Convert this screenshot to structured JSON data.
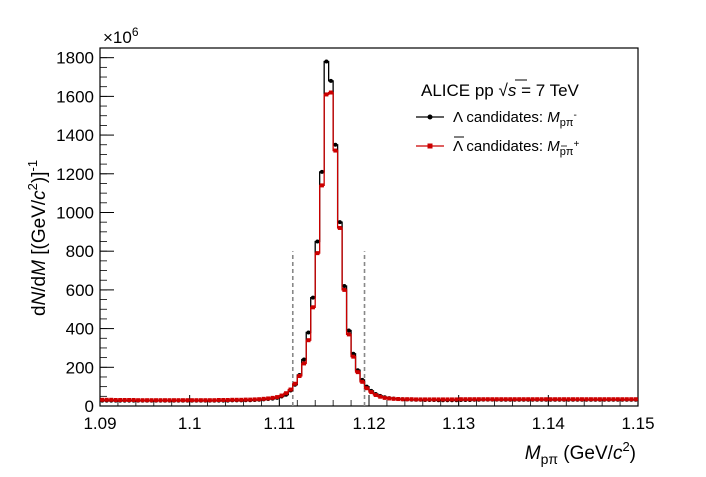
{
  "chart_data": {
    "type": "line",
    "title": "ALICE pp √s = 7 TeV",
    "title_prefix": "ALICE pp ",
    "title_sqrt": "√",
    "title_var": "s",
    "title_suffix": " = 7 TeV",
    "multiplier_label": "×10",
    "multiplier_exp": "6",
    "xlabel": "M_pπ (GeV/c²)",
    "xlabel_parts": {
      "var": "M",
      "sub": "pπ",
      "units_open": " (GeV/",
      "units_c": "c",
      "units_exp": "2",
      "units_close": ")"
    },
    "ylabel": "dN/dM [(GeV/c²)⁻¹]",
    "ylabel_parts": {
      "d1": "d",
      "N": "N",
      "slash": "/d",
      "M": "M",
      "open": " [(GeV/",
      "c": "c",
      "exp2": "2",
      "close": ")]",
      "expm1": "-1"
    },
    "xlim": [
      1.09,
      1.15
    ],
    "ylim": [
      0,
      1850
    ],
    "x_ticks": [
      1.09,
      1.1,
      1.11,
      1.12,
      1.13,
      1.14,
      1.15
    ],
    "x_tick_labels": [
      "1.09",
      "1.1",
      "1.11",
      "1.12",
      "1.13",
      "1.14",
      "1.15"
    ],
    "y_ticks": [
      0,
      200,
      400,
      600,
      800,
      1000,
      1200,
      1400,
      1600,
      1800
    ],
    "y_tick_labels": [
      "0",
      "200",
      "400",
      "600",
      "800",
      "1000",
      "1200",
      "1400",
      "1600",
      "1800"
    ],
    "bin_edges_start": 1.09,
    "bin_width": 0.0005,
    "series": [
      {
        "name": "Λ candidates: M_pπ⁻",
        "legend": {
          "main": "Λ candidates: ",
          "var": "M",
          "sub": "pπ",
          "sup": "-"
        },
        "color": "#000000",
        "values": [
          28,
          28,
          28,
          28,
          28,
          28,
          28,
          28,
          28,
          28,
          28,
          28,
          28,
          28,
          28,
          28,
          28,
          28,
          28,
          28,
          28,
          28,
          28,
          28,
          28,
          28,
          28,
          28,
          28,
          29,
          29,
          29,
          30,
          30,
          31,
          32,
          34,
          36,
          38,
          42,
          49,
          58,
          80,
          110,
          160,
          240,
          380,
          560,
          850,
          1210,
          1780,
          1680,
          1350,
          950,
          620,
          390,
          270,
          185,
          135,
          100,
          78,
          62,
          52,
          45,
          41,
          38,
          36,
          35,
          34,
          33,
          32,
          32,
          31,
          31,
          31,
          30,
          30,
          30,
          30,
          30,
          31,
          31,
          31,
          32,
          32,
          33,
          33,
          33,
          33,
          32,
          32,
          32,
          32,
          32,
          32,
          32,
          32,
          32,
          32,
          32,
          32,
          32,
          32,
          32,
          32,
          32,
          32,
          32,
          32,
          32,
          32,
          32,
          32,
          32,
          32,
          32,
          32,
          32,
          32,
          32
        ]
      },
      {
        "name": "Λ̄ candidates: M_p̄π⁺",
        "legend": {
          "main": "Λ candidates: ",
          "var": "M",
          "sub": "pπ",
          "sup": "+"
        },
        "color": "#cc0000",
        "values": [
          32,
          32,
          32,
          31,
          31,
          31,
          31,
          31,
          30,
          30,
          30,
          30,
          30,
          30,
          30,
          30,
          30,
          30,
          30,
          30,
          30,
          30,
          30,
          30,
          30,
          30,
          31,
          31,
          31,
          32,
          32,
          32,
          33,
          33,
          34,
          35,
          37,
          39,
          42,
          46,
          54,
          66,
          85,
          115,
          155,
          220,
          340,
          510,
          790,
          1140,
          1610,
          1620,
          1320,
          920,
          600,
          370,
          255,
          175,
          125,
          92,
          72,
          57,
          48,
          42,
          39,
          37,
          36,
          35,
          35,
          35,
          34,
          34,
          34,
          34,
          34,
          34,
          34,
          34,
          34,
          34,
          35,
          35,
          35,
          35,
          35,
          35,
          35,
          35,
          35,
          35,
          35,
          35,
          35,
          35,
          35,
          35,
          35,
          35,
          35,
          35,
          35,
          35,
          35,
          35,
          35,
          35,
          35,
          35,
          35,
          35,
          35,
          35,
          35,
          35,
          35,
          35,
          35,
          35,
          35,
          35
        ]
      }
    ],
    "selection_lines": [
      {
        "x": 1.1115,
        "y_top": 800,
        "color": "#888888"
      },
      {
        "x": 1.1195,
        "y_top": 800,
        "color": "#888888"
      }
    ]
  }
}
